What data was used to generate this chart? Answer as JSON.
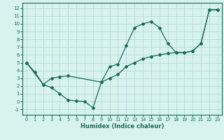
{
  "xlabel": "Humidex (Indice chaleur)",
  "bg_color": "#d8f2ee",
  "line_color": "#1a6b5a",
  "grid_color": "#b5ddd5",
  "xlim": [
    -0.5,
    23.5
  ],
  "ylim": [
    -1.7,
    12.7
  ],
  "xticks": [
    0,
    1,
    2,
    3,
    4,
    5,
    6,
    7,
    8,
    9,
    10,
    11,
    12,
    13,
    14,
    15,
    16,
    17,
    18,
    19,
    20,
    21,
    22,
    23
  ],
  "yticks": [
    -1,
    0,
    1,
    2,
    3,
    4,
    5,
    6,
    7,
    8,
    9,
    10,
    11,
    12
  ],
  "line1_x": [
    0,
    1,
    2,
    3,
    4,
    5,
    6,
    7,
    8,
    9,
    10,
    11,
    12,
    13,
    14,
    15,
    16,
    17,
    18,
    19,
    20,
    21,
    22,
    23
  ],
  "line1_y": [
    5.0,
    3.8,
    2.2,
    1.8,
    1.0,
    0.2,
    0.1,
    0.0,
    -0.8,
    2.5,
    4.5,
    4.8,
    7.2,
    9.5,
    10.0,
    10.3,
    9.5,
    7.5,
    6.3,
    6.3,
    6.5,
    7.5,
    11.8,
    11.8
  ],
  "line2_x": [
    0,
    2,
    3,
    4,
    5,
    9,
    10,
    11,
    12,
    13,
    14,
    15,
    16,
    17,
    18,
    19,
    20,
    21,
    22,
    23
  ],
  "line2_y": [
    5.0,
    2.2,
    3.0,
    3.2,
    3.3,
    2.5,
    3.0,
    3.5,
    4.5,
    5.0,
    5.5,
    5.8,
    6.0,
    6.2,
    6.3,
    6.3,
    6.5,
    7.5,
    11.8,
    11.8
  ]
}
